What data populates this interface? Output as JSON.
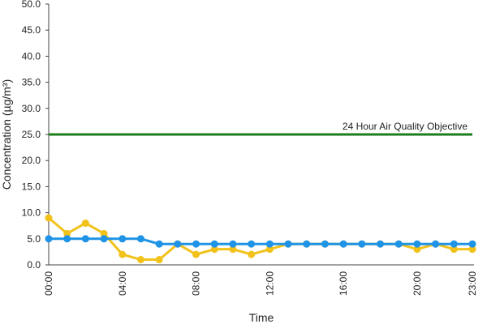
{
  "chart_data": {
    "type": "line",
    "x_label": "Time",
    "y_label": "Concentration (µg/m³)",
    "categories": [
      "00:00",
      null,
      null,
      null,
      "04:00",
      null,
      null,
      null,
      "08:00",
      null,
      null,
      null,
      "12:00",
      null,
      null,
      null,
      "16:00",
      null,
      null,
      null,
      "20:00",
      null,
      null,
      "23:00"
    ],
    "series": [
      {
        "color": "#f2c21a",
        "values": [
          9,
          6,
          8,
          6,
          2,
          1,
          1,
          4,
          2,
          3,
          3,
          2,
          3,
          4,
          4,
          4,
          4,
          4,
          4,
          4,
          3,
          4,
          3,
          3
        ]
      },
      {
        "color": "#1f93e6",
        "values": [
          5,
          5,
          5,
          5,
          5,
          5,
          4,
          4,
          4,
          4,
          4,
          4,
          4,
          4,
          4,
          4,
          4,
          4,
          4,
          4,
          4,
          4,
          4,
          4
        ]
      }
    ],
    "reference_line": {
      "value": 25,
      "label": "24 Hour Air Quality Objective",
      "color": "#1b7d1b"
    },
    "ylim": [
      0,
      50
    ],
    "yticks": [
      {
        "value": 0,
        "label": "0.0"
      },
      {
        "value": 5,
        "label": "5.0"
      },
      {
        "value": 10,
        "label": "10.0"
      },
      {
        "value": 15,
        "label": "15.0"
      },
      {
        "value": 20,
        "label": "20.0"
      },
      {
        "value": 25,
        "label": "25.0"
      },
      {
        "value": 30,
        "label": "30.0"
      },
      {
        "value": 35,
        "label": "35.0"
      },
      {
        "value": 40,
        "label": "40.0"
      },
      {
        "value": 45,
        "label": "45.0"
      },
      {
        "value": 50,
        "label": "50.0"
      }
    ],
    "grid": false
  }
}
